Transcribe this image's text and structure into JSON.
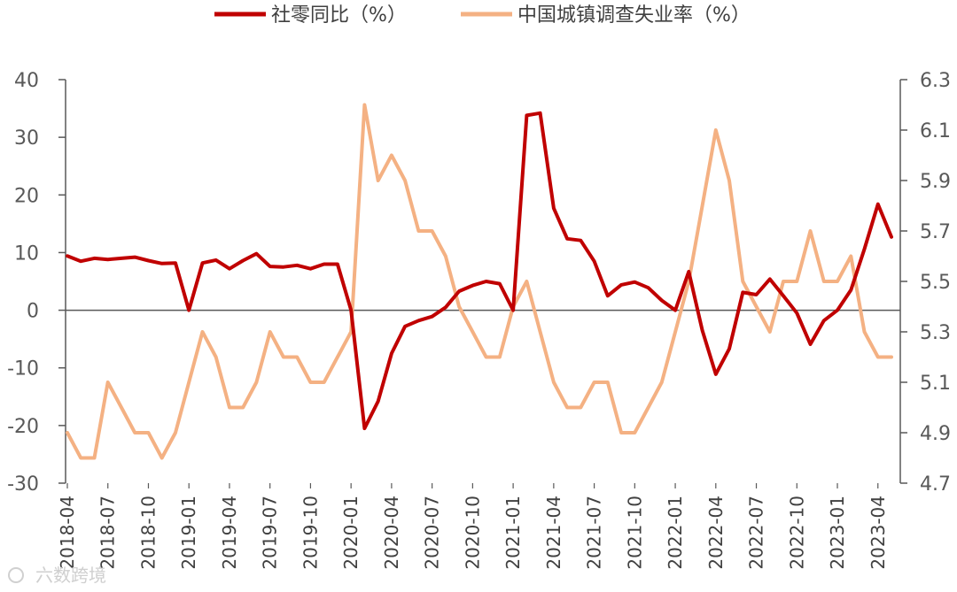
{
  "chart_data": {
    "type": "line",
    "title": "",
    "legend_position": "top-center",
    "watermark": "六数跨境",
    "colors": {
      "retail": "#c00000",
      "unemployment": "#f4b183",
      "axis": "#595959"
    },
    "x_tick_labels": [
      "2018-04",
      "2018-07",
      "2018-10",
      "2019-01",
      "2019-04",
      "2019-07",
      "2019-10",
      "2020-01",
      "2020-04",
      "2020-07",
      "2020-10",
      "2021-01",
      "2021-04",
      "2021-07",
      "2021-10",
      "2022-01",
      "2022-04",
      "2022-07",
      "2022-10",
      "2023-01",
      "2023-04"
    ],
    "x": [
      "2018-04",
      "2018-05",
      "2018-06",
      "2018-07",
      "2018-08",
      "2018-09",
      "2018-10",
      "2018-11",
      "2018-12",
      "2019-01",
      "2019-02",
      "2019-03",
      "2019-04",
      "2019-05",
      "2019-06",
      "2019-07",
      "2019-08",
      "2019-09",
      "2019-10",
      "2019-11",
      "2019-12",
      "2020-01",
      "2020-02",
      "2020-03",
      "2020-04",
      "2020-05",
      "2020-06",
      "2020-07",
      "2020-08",
      "2020-09",
      "2020-10",
      "2020-11",
      "2020-12",
      "2021-01",
      "2021-02",
      "2021-03",
      "2021-04",
      "2021-05",
      "2021-06",
      "2021-07",
      "2021-08",
      "2021-09",
      "2021-10",
      "2021-11",
      "2021-12",
      "2022-01",
      "2022-02",
      "2022-03",
      "2022-04",
      "2022-05",
      "2022-06",
      "2022-07",
      "2022-08",
      "2022-09",
      "2022-10",
      "2022-11",
      "2022-12",
      "2023-01",
      "2023-02",
      "2023-03",
      "2023-04",
      "2023-05"
    ],
    "left_axis": {
      "ylim": [
        -30,
        40
      ],
      "ticks": [
        "40",
        "30",
        "20",
        "10",
        "0",
        "-10",
        "-20",
        "-30"
      ]
    },
    "right_axis": {
      "ylim": [
        4.7,
        6.3
      ],
      "ticks": [
        "6.3",
        "6.1",
        "5.9",
        "5.7",
        "5.5",
        "5.3",
        "5.1",
        "4.9",
        "4.7"
      ]
    },
    "series": [
      {
        "name": "社零同比（%）",
        "axis": "left",
        "values": [
          9.4,
          8.5,
          9.0,
          8.8,
          9.0,
          9.2,
          8.6,
          8.1,
          8.2,
          0,
          8.2,
          8.7,
          7.2,
          8.6,
          9.8,
          7.6,
          7.5,
          7.8,
          7.2,
          8.0,
          8.0,
          0,
          -20.5,
          -15.8,
          -7.5,
          -2.8,
          -1.8,
          -1.1,
          0.5,
          3.3,
          4.3,
          5.0,
          4.6,
          0,
          33.8,
          34.2,
          17.7,
          12.4,
          12.1,
          8.5,
          2.5,
          4.4,
          4.9,
          3.9,
          1.7,
          0,
          6.7,
          -3.5,
          -11.1,
          -6.7,
          3.1,
          2.7,
          5.4,
          2.5,
          -0.5,
          -5.9,
          -1.8,
          0,
          3.5,
          10.6,
          18.4,
          12.7
        ]
      },
      {
        "name": "中国城镇调查失业率（%）",
        "axis": "right",
        "values": [
          4.9,
          4.8,
          4.8,
          5.1,
          5.0,
          4.9,
          4.9,
          4.8,
          4.9,
          5.1,
          5.3,
          5.2,
          5.0,
          5.0,
          5.1,
          5.3,
          5.2,
          5.2,
          5.1,
          5.1,
          5.2,
          5.3,
          6.2,
          5.9,
          6.0,
          5.9,
          5.7,
          5.7,
          5.6,
          5.4,
          5.3,
          5.2,
          5.2,
          5.4,
          5.5,
          5.3,
          5.1,
          5.0,
          5.0,
          5.1,
          5.1,
          4.9,
          4.9,
          5.0,
          5.1,
          5.3,
          5.5,
          5.8,
          6.1,
          5.9,
          5.5,
          5.4,
          5.3,
          5.5,
          5.5,
          5.7,
          5.5,
          5.5,
          5.6,
          5.3,
          5.2,
          5.2
        ]
      }
    ]
  }
}
